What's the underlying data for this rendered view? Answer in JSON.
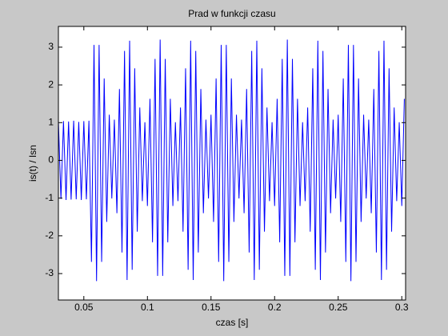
{
  "chart_data": {
    "type": "line",
    "title": "Prad w funkcji czasu",
    "x_label": "czas [s]",
    "y_label": "is(t) / Isn",
    "xlim": [
      0.03,
      0.303
    ],
    "ylim": [
      -3.7,
      3.55
    ],
    "xticks": [
      0.05,
      0.1,
      0.15,
      0.2,
      0.25,
      0.3
    ],
    "yticks": [
      -3,
      -2,
      -1,
      0,
      1,
      2,
      3
    ],
    "x": [
      0.03,
      0.032,
      0.034,
      0.036,
      0.038,
      0.04,
      0.042,
      0.044,
      0.046,
      0.048,
      0.05,
      0.052,
      0.054,
      0.056,
      0.058,
      0.06,
      0.062,
      0.064,
      0.066,
      0.068,
      0.07,
      0.072,
      0.074,
      0.076,
      0.078,
      0.08,
      0.082,
      0.084,
      0.086,
      0.088,
      0.09,
      0.092,
      0.094,
      0.096,
      0.098,
      0.1,
      0.102,
      0.104,
      0.106,
      0.108,
      0.11,
      0.112,
      0.114,
      0.116,
      0.118,
      0.12,
      0.122,
      0.124,
      0.126,
      0.128,
      0.13,
      0.132,
      0.134,
      0.136,
      0.138,
      0.14,
      0.142,
      0.144,
      0.146,
      0.148,
      0.15,
      0.152,
      0.154,
      0.156,
      0.158,
      0.16,
      0.162,
      0.164,
      0.166,
      0.168,
      0.17,
      0.172,
      0.174,
      0.176,
      0.178,
      0.18,
      0.182,
      0.184,
      0.186,
      0.188,
      0.19,
      0.192,
      0.194,
      0.196,
      0.198,
      0.2,
      0.202,
      0.204,
      0.206,
      0.208,
      0.21,
      0.212,
      0.214,
      0.216,
      0.218,
      0.22,
      0.222,
      0.224,
      0.226,
      0.228,
      0.23,
      0.232,
      0.234,
      0.236,
      0.238,
      0.24,
      0.242,
      0.244,
      0.246,
      0.248,
      0.25,
      0.252,
      0.254,
      0.256,
      0.258,
      0.26,
      0.262,
      0.264,
      0.266,
      0.268,
      0.27,
      0.272,
      0.274,
      0.276,
      0.278,
      0.28,
      0.282,
      0.284,
      0.286,
      0.288,
      0.29,
      0.292,
      0.294,
      0.296,
      0.298,
      0.3,
      0.302
    ],
    "series": [
      {
        "color": "#0000ff",
        "values": [
          1.05,
          -1.02,
          1.04,
          -1.05,
          1.03,
          -1.04,
          1.05,
          -1.03,
          1.02,
          -1.05,
          1.04,
          -1.03,
          1.05,
          -2.69,
          3.06,
          -3.2,
          3.06,
          -2.69,
          2.17,
          -1.63,
          1.21,
          -1.01,
          1.08,
          -1.4,
          1.89,
          -2.44,
          2.9,
          -3.17,
          3.17,
          -2.9,
          2.44,
          -1.89,
          1.4,
          -1.08,
          1.01,
          -1.21,
          1.63,
          -2.17,
          2.69,
          -3.06,
          3.2,
          -3.06,
          2.69,
          -2.17,
          1.63,
          -1.21,
          1.01,
          -1.08,
          1.4,
          -1.89,
          2.44,
          -2.9,
          3.17,
          -3.17,
          2.9,
          -2.44,
          1.89,
          -1.4,
          1.08,
          -1.01,
          1.21,
          -1.63,
          2.17,
          -2.69,
          3.06,
          -3.2,
          3.06,
          -2.69,
          2.17,
          -1.63,
          1.21,
          -1.01,
          1.08,
          -1.4,
          1.89,
          -2.44,
          2.9,
          -3.17,
          3.17,
          -2.9,
          2.44,
          -1.89,
          1.4,
          -1.08,
          1.01,
          -1.21,
          1.63,
          -2.17,
          2.69,
          -3.06,
          3.2,
          -3.06,
          2.69,
          -2.17,
          1.63,
          -1.21,
          1.01,
          -1.08,
          1.4,
          -1.89,
          2.44,
          -2.9,
          3.17,
          -3.17,
          2.9,
          -2.44,
          1.89,
          -1.4,
          1.08,
          -1.01,
          1.21,
          -1.63,
          2.17,
          -2.69,
          3.06,
          -3.2,
          3.06,
          -2.69,
          2.17,
          -1.63,
          1.21,
          -1.01,
          1.08,
          -1.4,
          1.89,
          -2.44,
          2.9,
          -3.17,
          3.17,
          -2.9,
          2.44,
          -1.89,
          1.4,
          -1.08,
          1.01,
          -1.21,
          1.63
        ]
      }
    ]
  }
}
